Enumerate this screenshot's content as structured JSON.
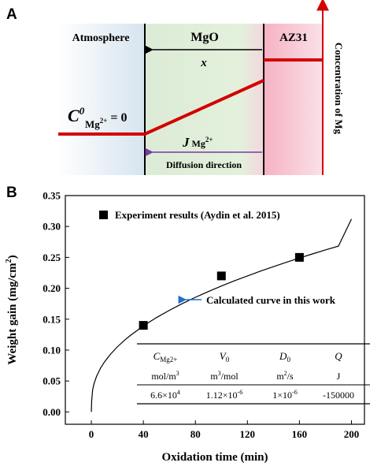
{
  "panel_a": {
    "letter": "A",
    "region_atmosphere": "Atmosphere",
    "region_mgo": "MgO",
    "region_az31": "AZ31",
    "thickness_symbol": "x",
    "c0_symbol": "C",
    "c0_superscript": "0",
    "c0_subscript": "Mg",
    "c0_charge": "2+",
    "c0_value": " = 0",
    "flux_symbol": "J",
    "flux_subscript": " Mg",
    "flux_charge": "2+",
    "diffusion_label": "Diffusion direction",
    "concentration_axis_label": "Concentration of Mg",
    "colors": {
      "profile_line": "#d40000",
      "diffusion_arrow": "#7a3aa0",
      "concentration_arrow": "#d40000",
      "atmosphere_bg": "#dde8f0",
      "mgo_bg": "#e0f0da",
      "az31_bg": "#f7b8c6"
    }
  },
  "panel_b": {
    "letter": "B",
    "chart_data": {
      "type": "scatter",
      "xlabel": "Oxidation time (min)",
      "ylabel": "Weight gain (mg/cm²)",
      "ylabel_main": "Weight gain (mg/cm",
      "ylabel_sup": "2",
      "ylabel_end": ")",
      "xlim": [
        -20,
        210
      ],
      "ylim": [
        -0.02,
        0.35
      ],
      "xticks": [
        "0",
        "40",
        "80",
        "120",
        "160",
        "200"
      ],
      "yticks": [
        "0.00",
        "0.05",
        "0.10",
        "0.15",
        "0.20",
        "0.25",
        "0.30",
        "0.35"
      ],
      "series": [
        {
          "name": "Experiment results (Aydin et al. 2015)",
          "kind": "markers",
          "x": [
            40,
            100,
            160
          ],
          "y": [
            0.14,
            0.22,
            0.25
          ]
        },
        {
          "name": "Calculated curve in this work",
          "kind": "line",
          "x": [
            0,
            0.25,
            1,
            2,
            4,
            7,
            10,
            15,
            20,
            25,
            30,
            40,
            50,
            60,
            70,
            80,
            90,
            100,
            110,
            120,
            130,
            140,
            150,
            160,
            170,
            180,
            190,
            200
          ],
          "y": [
            0.0,
            0.0181,
            0.0355,
            0.0453,
            0.0575,
            0.0706,
            0.0805,
            0.094,
            0.1052,
            0.115,
            0.1237,
            0.1391,
            0.1525,
            0.1644,
            0.1753,
            0.1854,
            0.1948,
            0.2037,
            0.2121,
            0.22,
            0.2277,
            0.235,
            0.2421,
            0.249,
            0.2556,
            0.262,
            0.2682,
            0.312
          ]
        }
      ],
      "legend_marker_color": "#000000",
      "annotation_arrow_color": "#1f6fd1",
      "table": {
        "headers": [
          {
            "main": "C",
            "sub": "Mg2+"
          },
          {
            "main": "V",
            "sub": "0"
          },
          {
            "main": "D",
            "sub": "0"
          },
          {
            "main": "Q",
            "sub": ""
          }
        ],
        "units": [
          {
            "main": "mol/m",
            "sup": "3"
          },
          {
            "main": "m",
            "sup": "3",
            "rest": "/mol"
          },
          {
            "main": "m",
            "sup": "2",
            "rest": "/s"
          },
          {
            "main": "J",
            "sup": "",
            "rest": ""
          }
        ],
        "values": [
          {
            "main": "6.6×10",
            "sup": "4"
          },
          {
            "main": "1.12×10",
            "sup": "-6"
          },
          {
            "main": "1×10",
            "sup": "-6"
          },
          {
            "main": "-150000",
            "sup": ""
          }
        ]
      }
    }
  }
}
